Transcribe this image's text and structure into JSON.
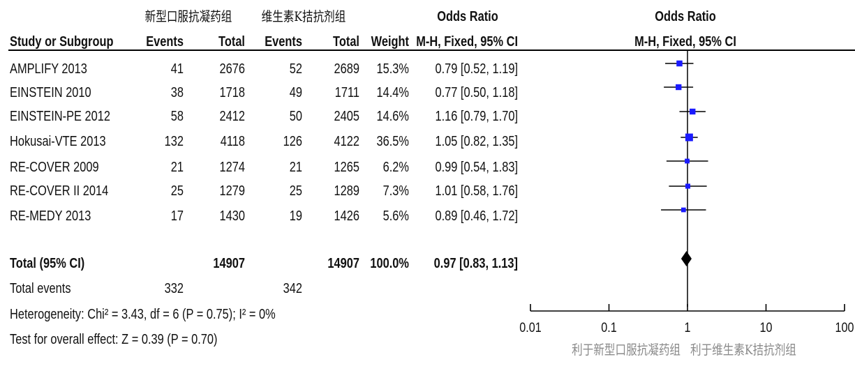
{
  "group_headers": {
    "experimental": "新型口服抗凝药组",
    "control": "维生素K拮抗剂组"
  },
  "columns": {
    "study": "Study or Subgroup",
    "events1": "Events",
    "total1": "Total",
    "events2": "Events",
    "total2": "Total",
    "weight": "Weight",
    "or_title": "Odds Ratio",
    "or_sub": "M-H, Fixed, 95% CI",
    "plot_title": "Odds Ratio",
    "plot_sub": "M-H, Fixed, 95% CI"
  },
  "total_row": {
    "label": "Total (95% CI)",
    "total1": "14907",
    "total2": "14907",
    "weight": "100.0%",
    "ci": "0.97 [0.83, 1.13]"
  },
  "events_row": {
    "label": "Total events",
    "events1": "332",
    "events2": "342"
  },
  "heterogeneity": "Heterogeneity: Chi² = 3.43, df = 6 (P = 0.75); I² = 0%",
  "overall_effect": "Test for overall effect: Z = 0.39 (P = 0.70)",
  "axis_footer": {
    "left": "利于新型口服抗凝药组",
    "right": "利于维生素K拮抗剂组"
  },
  "colors": {
    "square": "#1a1aff",
    "diamond": "#000000",
    "line": "#000000",
    "footer": "#8a8a8a"
  },
  "chart_data": {
    "type": "forest",
    "scale": "log",
    "xlim": [
      0.01,
      100
    ],
    "ticks": [
      "0.01",
      "0.1",
      "1",
      "10",
      "100"
    ],
    "tick_values": [
      0.01,
      0.1,
      1,
      10,
      100
    ],
    "reference_line": 1,
    "studies": [
      {
        "name": "AMPLIFY 2013",
        "events1": "41",
        "total1": "2676",
        "events2": "52",
        "total2": "2689",
        "weight": "15.3%",
        "ci": "0.79 [0.52, 1.19]",
        "or": 0.79,
        "lo": 0.52,
        "hi": 1.19,
        "w": 15.3
      },
      {
        "name": "EINSTEIN 2010",
        "events1": "38",
        "total1": "1718",
        "events2": "49",
        "total2": "1711",
        "weight": "14.4%",
        "ci": "0.77 [0.50, 1.18]",
        "or": 0.77,
        "lo": 0.5,
        "hi": 1.18,
        "w": 14.4
      },
      {
        "name": "EINSTEIN-PE 2012",
        "events1": "58",
        "total1": "2412",
        "events2": "50",
        "total2": "2405",
        "weight": "14.6%",
        "ci": "1.16 [0.79, 1.70]",
        "or": 1.16,
        "lo": 0.79,
        "hi": 1.7,
        "w": 14.6
      },
      {
        "name": "Hokusai-VTE 2013",
        "events1": "132",
        "total1": "4118",
        "events2": "126",
        "total2": "4122",
        "weight": "36.5%",
        "ci": "1.05 [0.82, 1.35]",
        "or": 1.05,
        "lo": 0.82,
        "hi": 1.35,
        "w": 36.5
      },
      {
        "name": "RE-COVER 2009",
        "events1": "21",
        "total1": "1274",
        "events2": "21",
        "total2": "1265",
        "weight": "6.2%",
        "ci": "0.99 [0.54, 1.83]",
        "or": 0.99,
        "lo": 0.54,
        "hi": 1.83,
        "w": 6.2
      },
      {
        "name": "RE-COVER II 2014",
        "events1": "25",
        "total1": "1279",
        "events2": "25",
        "total2": "1289",
        "weight": "7.3%",
        "ci": "1.01 [0.58, 1.76]",
        "or": 1.01,
        "lo": 0.58,
        "hi": 1.76,
        "w": 7.3
      },
      {
        "name": "RE-MEDY 2013",
        "events1": "17",
        "total1": "1430",
        "events2": "19",
        "total2": "1426",
        "weight": "5.6%",
        "ci": "0.89 [0.46, 1.72]",
        "or": 0.89,
        "lo": 0.46,
        "hi": 1.72,
        "w": 5.6
      }
    ],
    "overall": {
      "or": 0.97,
      "lo": 0.83,
      "hi": 1.13
    }
  }
}
